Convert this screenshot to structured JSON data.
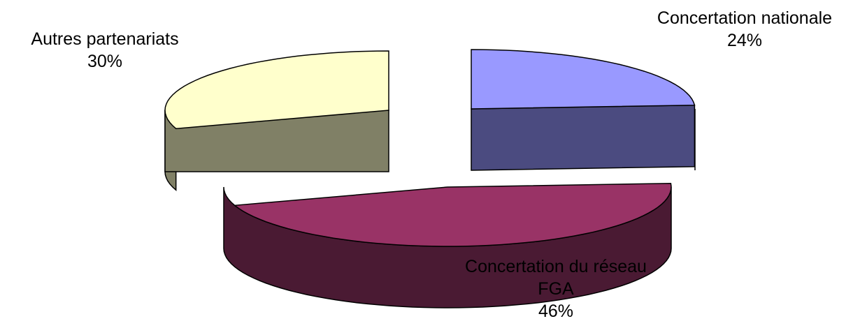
{
  "chart_data": {
    "type": "pie",
    "style": "3d-exploded",
    "title": "",
    "slices": [
      {
        "label": "Concertation nationale",
        "label_lines": [
          "Concertation nationale"
        ],
        "value": 24,
        "value_label": "24%",
        "color": "#9999ff",
        "side_color": "#4b4b80"
      },
      {
        "label": "Concertation du réseau FGA",
        "label_lines": [
          "Concertation du réseau",
          "FGA"
        ],
        "value": 46,
        "value_label": "46%",
        "color": "#993366",
        "side_color": "#4a1a33"
      },
      {
        "label": "Autres partenariats",
        "label_lines": [
          "Autres partenariats"
        ],
        "value": 30,
        "value_label": "30%",
        "color": "#ffffcc",
        "side_color": "#808066"
      }
    ],
    "legend": "none"
  }
}
